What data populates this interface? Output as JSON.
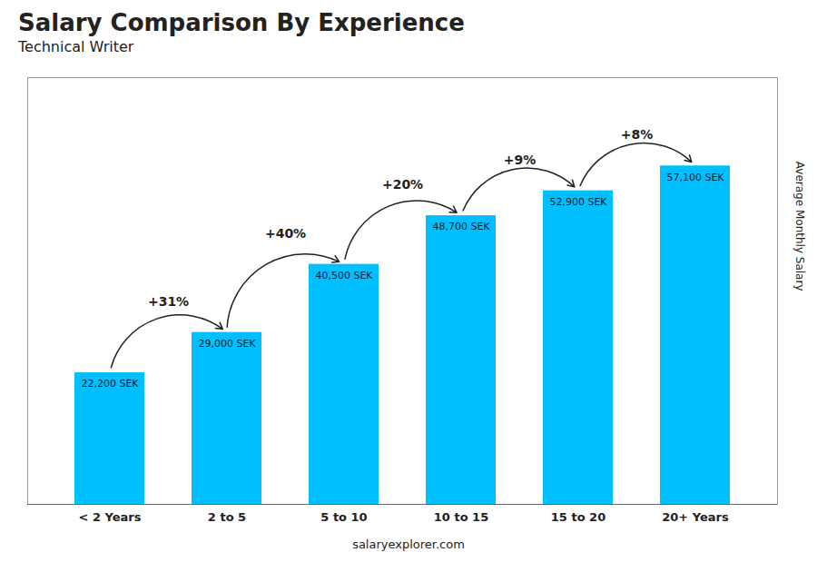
{
  "chart_data": {
    "type": "bar",
    "title": "Salary Comparison By Experience",
    "subtitle": "Technical Writer",
    "caption": "salaryexplorer.com",
    "ylabel": "Average Monthly Salary",
    "categories": [
      "< 2 Years",
      "2 to 5",
      "5 to 10",
      "10 to 15",
      "15 to 20",
      "20+ Years"
    ],
    "values": [
      22200,
      29000,
      40500,
      48700,
      52900,
      57100
    ],
    "value_labels": [
      "22,200 SEK",
      "29,000 SEK",
      "40,500 SEK",
      "48,700 SEK",
      "52,900 SEK",
      "57,100 SEK"
    ],
    "data_labels": true,
    "color": "#00bfff",
    "ylim": [
      0,
      72000
    ],
    "yticks": [],
    "tick_labels": "x",
    "grid": false,
    "annotations": [
      "+31%",
      "+40%",
      "+20%",
      "+9%",
      "+8%"
    ]
  }
}
